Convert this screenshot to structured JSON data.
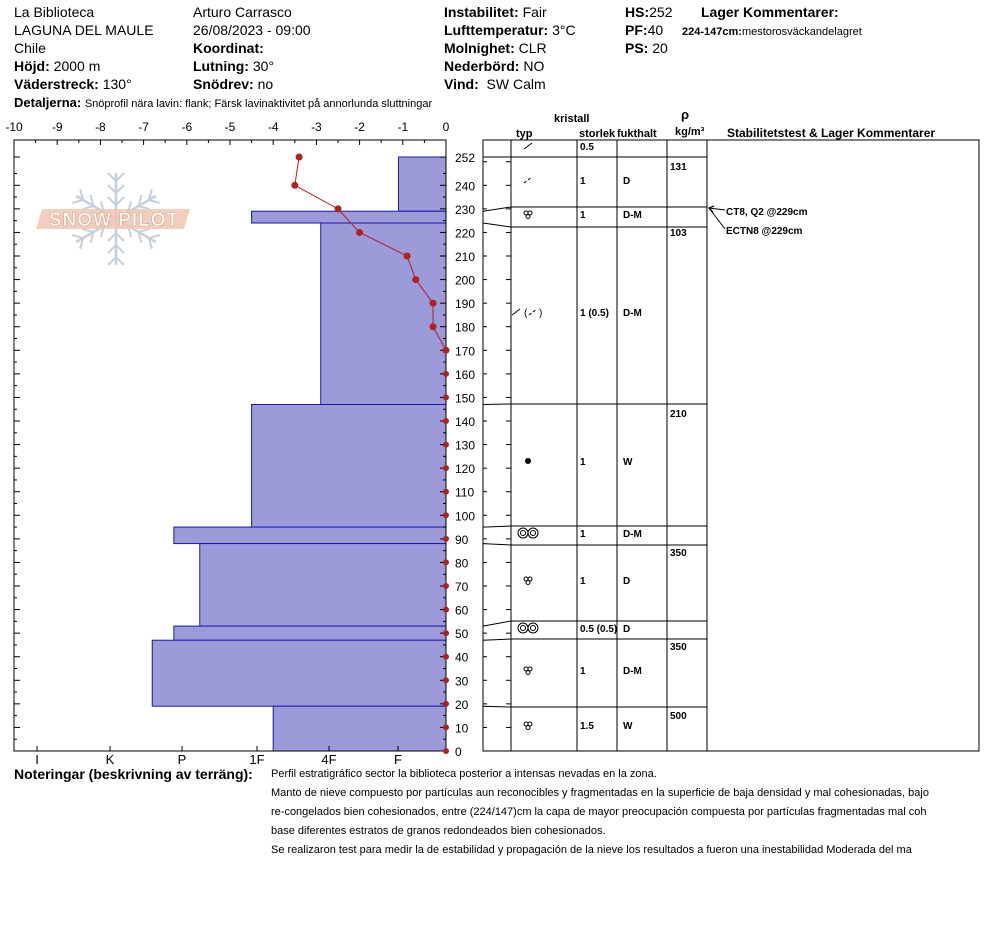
{
  "header": {
    "location": "La Biblioteca",
    "area": "LAGUNA DEL MAULE",
    "country": "Chile",
    "elevation_label": "Höjd:",
    "elevation": "2000 m",
    "aspect_label": "Väderstreck:",
    "aspect": "130°",
    "observer": "Arturo Carrasco",
    "datetime": "26/08/2023 - 09:00",
    "coord_label": "Koordinat:",
    "slope_label": "Lutning:",
    "slope": "30°",
    "drift_label": "Snödrev:",
    "drift": "no",
    "instability_label": "Instabilitet:",
    "instability": "Fair",
    "airtemp_label": "Lufttemperatur:",
    "airtemp": "3°C",
    "sky_label": "Molnighet:",
    "sky": "CLR",
    "precip_label": "Nederbörd:",
    "precip": "NO",
    "wind_label": "Vind:",
    "wind": "SW Calm",
    "hs_label": "HS:",
    "hs": "252",
    "pf_label": "PF:",
    "pf": "40",
    "ps_label": "PS:",
    "ps": "20",
    "layer_comments_label": "Lager Kommentarer:",
    "layer_comment_range": "224-147cm:",
    "layer_comment_text": "mestorosväckandelagret",
    "details_label": "Detaljerna:",
    "details": "Snöprofil nära lavin: flank; Färsk lavinaktivitet på annorlunda sluttningar"
  },
  "columns": {
    "crystal": "kristall",
    "type": "typ",
    "size": "storlek",
    "moisture": "fukthalt",
    "rho": "ρ",
    "density_unit": "kg/m³",
    "stability": "Stabilitetstest & Lager Kommentarer"
  },
  "logo": "SNOW PILOT",
  "chart_data": {
    "type": "snow-profile",
    "temperature_axis": {
      "range": [
        -10,
        0
      ],
      "ticks": [
        "-10",
        "-9",
        "-8",
        "-7",
        "-6",
        "-5",
        "-4",
        "-3",
        "-2",
        "-1",
        "0"
      ]
    },
    "hardness_axis": {
      "ticks": [
        "I",
        "K",
        "P",
        "1F",
        "4F",
        "F"
      ]
    },
    "height_axis": {
      "range": [
        0,
        252
      ],
      "ticks": [
        "252",
        "240",
        "230",
        "220",
        "210",
        "200",
        "190",
        "180",
        "170",
        "160",
        "150",
        "140",
        "130",
        "120",
        "110",
        "100",
        "90",
        "80",
        "70",
        "60",
        "50",
        "40",
        "30",
        "20",
        "10",
        "0"
      ]
    },
    "temperature_profile": [
      {
        "height": 252,
        "temp": -3.4
      },
      {
        "height": 240,
        "temp": -3.5
      },
      {
        "height": 230,
        "temp": -2.5
      },
      {
        "height": 220,
        "temp": -2.0
      },
      {
        "height": 210,
        "temp": -0.9
      },
      {
        "height": 200,
        "temp": -0.7
      },
      {
        "height": 190,
        "temp": -0.3
      },
      {
        "height": 180,
        "temp": -0.3
      },
      {
        "height": 170,
        "temp": 0
      }
    ],
    "hardness_layers": [
      {
        "bottom": 229,
        "top": 252,
        "hardness_temp": -1.1
      },
      {
        "bottom": 224,
        "top": 229,
        "hardness_temp": -4.5
      },
      {
        "bottom": 147,
        "top": 224,
        "hardness_temp": -2.9
      },
      {
        "bottom": 95,
        "top": 147,
        "hardness_temp": -4.5
      },
      {
        "bottom": 88,
        "top": 95,
        "hardness_temp": -6.3
      },
      {
        "bottom": 53,
        "top": 88,
        "hardness_temp": -5.7
      },
      {
        "bottom": 47,
        "top": 53,
        "hardness_temp": -6.3
      },
      {
        "bottom": 19,
        "top": 47,
        "hardness_temp": -6.8
      },
      {
        "bottom": 0,
        "top": 19,
        "hardness_temp": -4.0
      }
    ],
    "layers": [
      {
        "bottom": 252,
        "top": 252,
        "grain": "decomposing",
        "size": "0.5",
        "moisture": "",
        "density": ""
      },
      {
        "bottom": 229,
        "top": 252,
        "grain": "fragmented",
        "size": "1",
        "moisture": "D",
        "density": "131"
      },
      {
        "bottom": 224,
        "top": 229,
        "grain": "rounded-faceted",
        "size": "1",
        "moisture": "D-M",
        "density": ""
      },
      {
        "bottom": 147,
        "top": 224,
        "grain": "decomposing-mixed",
        "size": "1 (0.5)",
        "moisture": "D-M",
        "density": "103"
      },
      {
        "bottom": 95,
        "top": 147,
        "grain": "melt-freeze",
        "size": "1",
        "moisture": "W",
        "density": "210"
      },
      {
        "bottom": 88,
        "top": 95,
        "grain": "melt-clusters",
        "size": "1",
        "moisture": "D-M",
        "density": ""
      },
      {
        "bottom": 53,
        "top": 88,
        "grain": "rounded-faceted",
        "size": "1",
        "moisture": "D",
        "density": "350"
      },
      {
        "bottom": 47,
        "top": 53,
        "grain": "melt-clusters",
        "size": "0.5 (0.5)",
        "moisture": "D",
        "density": ""
      },
      {
        "bottom": 19,
        "top": 47,
        "grain": "rounded-faceted",
        "size": "1",
        "moisture": "D-M",
        "density": "350"
      },
      {
        "bottom": 0,
        "top": 19,
        "grain": "rounded-faceted-open",
        "size": "1.5",
        "moisture": "W",
        "density": "500"
      }
    ],
    "stability_tests": [
      {
        "label": "CT8, Q2 @229cm",
        "height": 229
      },
      {
        "label": "ECTN8 @229cm",
        "height": 229
      }
    ]
  },
  "notes": {
    "label": "Noteringar (beskrivning av terräng):",
    "lines": [
      "Perfil estratigráfico sector la biblioteca posterior a intensas nevadas en la zona.",
      "Manto de nieve compuesto por partículas aun reconocibles y fragmentadas en la superficie de baja densidad y mal cohesionadas, bajo",
      "re-congelados bien cohesionados, entre (224/147)cm la capa de mayor preocupación compuesta por partículas fragmentadas mal coh",
      "base diferentes estratos de granos redondeados bien cohesionados.",
      "Se realizaron test para medir la de estabilidad y propagación de la nieve los resultados    a fueron  una inestabilidad  Moderada del ma"
    ]
  },
  "colors": {
    "hardness_fill": "#9c9ad8",
    "hardness_stroke": "#1a1aa8",
    "temperature": "#b02020"
  }
}
